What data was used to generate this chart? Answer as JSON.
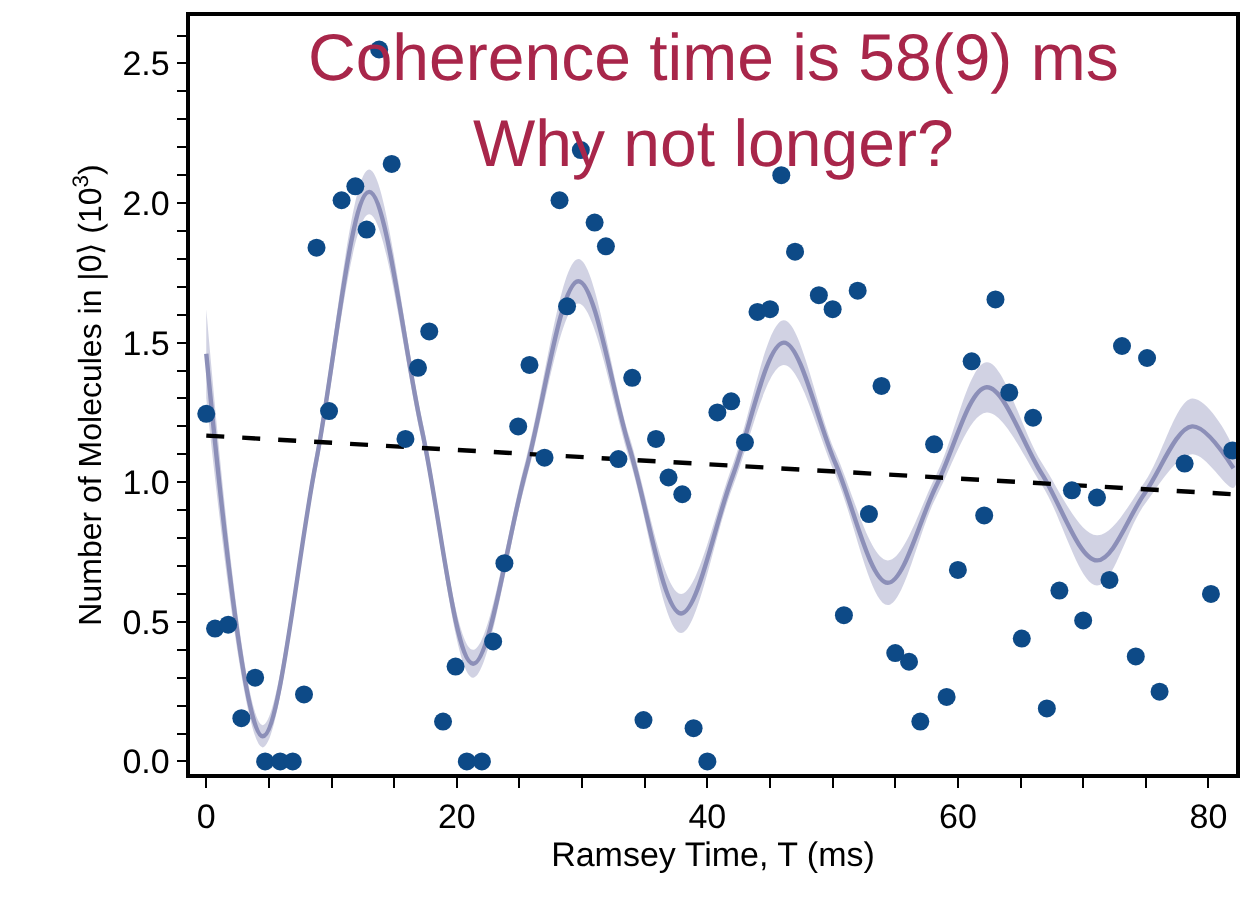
{
  "chart_data": {
    "type": "scatter",
    "xlabel": "Ramsey Time, T (ms)",
    "ylabel": "Number of Molecules in |0⟩ (10$^{3}$)",
    "annotations": [
      "Coherence time is 58(9) ms\nWhy not longer?"
    ],
    "xlim": [
      -1.3,
      82.2
    ],
    "ylim": [
      -0.045,
      2.67
    ],
    "xticks": [
      0,
      {
        "value": 5,
        "label": null
      },
      {
        "value": 10,
        "label": null
      },
      {
        "value": 15,
        "label": null
      },
      20,
      {
        "value": 25,
        "label": null
      },
      {
        "value": 30,
        "label": null
      },
      {
        "value": 35,
        "label": null
      },
      40,
      {
        "value": 45,
        "label": null
      },
      {
        "value": 50,
        "label": null
      },
      {
        "value": 55,
        "label": null
      },
      60,
      {
        "value": 65,
        "label": null
      },
      {
        "value": 70,
        "label": null
      },
      {
        "value": 75,
        "label": null
      },
      80
    ],
    "yticks": [
      {
        "value": 0,
        "label": "0.0"
      },
      {
        "value": 0.1,
        "label": null
      },
      {
        "value": 0.2,
        "label": null
      },
      {
        "value": 0.3,
        "label": null
      },
      {
        "value": 0.4,
        "label": null
      },
      0.5,
      {
        "value": 0.6,
        "label": null
      },
      {
        "value": 0.7,
        "label": null
      },
      {
        "value": 0.8,
        "label": null
      },
      {
        "value": 0.9,
        "label": null
      },
      {
        "value": 1,
        "label": "1.0"
      },
      {
        "value": 1.1,
        "label": null
      },
      {
        "value": 1.2,
        "label": null
      },
      {
        "value": 1.3,
        "label": null
      },
      {
        "value": 1.4,
        "label": null
      },
      1.5,
      {
        "value": 1.6,
        "label": null
      },
      {
        "value": 1.7,
        "label": null
      },
      {
        "value": 1.8,
        "label": null
      },
      {
        "value": 1.9,
        "label": null
      },
      {
        "value": 2,
        "label": "2.0"
      },
      {
        "value": 2.1,
        "label": null
      },
      {
        "value": 2.2,
        "label": null
      },
      {
        "value": 2.3,
        "label": null
      },
      {
        "value": 2.4,
        "label": null
      },
      2.5,
      {
        "value": 2.6,
        "label": null
      }
    ],
    "series": [
      {
        "type": "line",
        "color": "#8c8fb8",
        "x": [
          0,
          4.5,
          8.75,
          13,
          17.2,
          21.3,
          25.5,
          29.7,
          33.8,
          37.9,
          42,
          46.1,
          50.2,
          54.4,
          58.3,
          62.3,
          66.7,
          71.1,
          74.9,
          78.7,
          82
        ],
        "values": [
          1.46,
          0.09,
          1.07,
          2.04,
          1.19,
          0.35,
          1.04,
          1.72,
          1.12,
          0.53,
          1.02,
          1.5,
          1.07,
          0.64,
          0.99,
          1.34,
          1.03,
          0.72,
          0.96,
          1.2,
          1.05
        ],
        "lower": [
          1.3,
          0.05,
          1.03,
          1.96,
          1.15,
          0.3,
          1.0,
          1.64,
          1.08,
          0.46,
          0.98,
          1.42,
          1.03,
          0.56,
          0.95,
          1.25,
          0.99,
          0.63,
          0.92,
          1.1,
          0.98
        ],
        "upper": [
          1.62,
          0.13,
          1.11,
          2.12,
          1.23,
          0.4,
          1.08,
          1.8,
          1.16,
          0.6,
          1.06,
          1.58,
          1.11,
          0.72,
          1.03,
          1.43,
          1.07,
          0.81,
          1.0,
          1.3,
          1.12
        ]
      },
      {
        "type": "line",
        "color": "#000000",
        "line_style": "dashed",
        "x": [
          0,
          82
        ],
        "values": [
          1.167,
          0.957
        ]
      },
      {
        "color": "#0d4a87",
        "marker": "circle",
        "x": [
          0,
          0.7,
          1.75,
          2.8,
          3.9,
          4.7,
          5.9,
          6.9,
          7.8,
          8.8,
          9.8,
          10.8,
          11.9,
          12.8,
          13.8,
          14.8,
          15.9,
          16.9,
          17.8,
          18.9,
          19.9,
          20.8,
          22.0,
          22.9,
          23.8,
          24.9,
          25.8,
          27.0,
          28.2,
          28.8,
          29.9,
          31.0,
          31.9,
          32.9,
          34.0,
          34.9,
          35.9,
          36.9,
          38.0,
          38.9,
          40.0,
          40.8,
          41.9,
          43.0,
          44.0,
          45.0,
          45.9,
          47.0,
          48.9,
          50.0,
          50.9,
          52.0,
          52.9,
          53.9,
          55.0,
          56.1,
          57.0,
          58.1,
          59.1,
          60.0,
          61.1,
          62.1,
          63.0,
          64.1,
          65.1,
          66.0,
          67.1,
          68.1,
          69.1,
          70.0,
          71.1,
          72.1,
          73.1,
          74.2,
          75.1,
          76.1,
          78.1,
          80.2,
          81.9
        ],
        "values": [
          1.245,
          0.476,
          0.49,
          0.155,
          0.3,
          0,
          0,
          0,
          0.24,
          1.84,
          1.255,
          2.01,
          2.06,
          1.905,
          2.55,
          2.14,
          1.155,
          1.41,
          1.54,
          0.143,
          0.34,
          0,
          0,
          0.43,
          0.71,
          1.2,
          1.42,
          1.088,
          2.01,
          1.63,
          2.19,
          1.93,
          1.845,
          1.083,
          1.374,
          0.148,
          1.155,
          1.017,
          0.957,
          0.119,
          0,
          1.25,
          1.29,
          1.143,
          1.61,
          1.62,
          2.1,
          1.826,
          1.67,
          1.62,
          0.524,
          1.686,
          0.886,
          1.345,
          0.388,
          0.357,
          0.143,
          1.136,
          0.231,
          0.686,
          1.433,
          0.881,
          1.655,
          1.321,
          0.44,
          1.231,
          0.19,
          0.612,
          0.971,
          0.505,
          0.945,
          0.65,
          1.488,
          0.376,
          1.445,
          0.25,
          1.067,
          0.6,
          1.114
        ]
      }
    ]
  }
}
